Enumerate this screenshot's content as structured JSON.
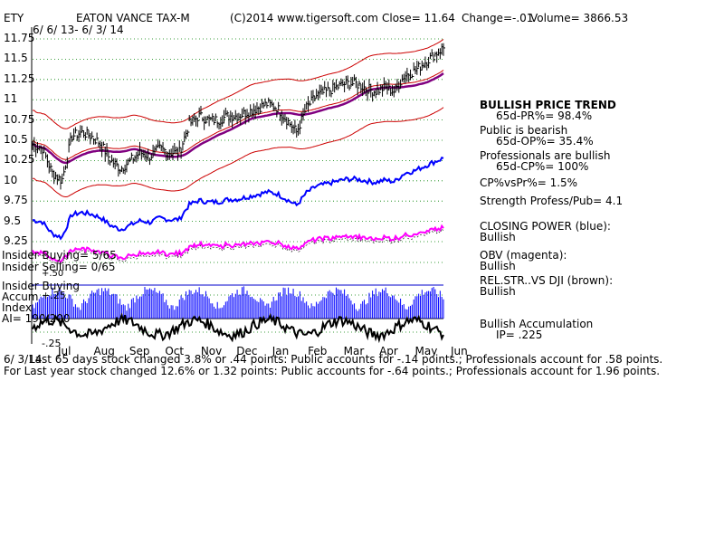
{
  "header": {
    "symbol": "ETY",
    "name": "EATON VANCE TAX-M",
    "copyright": "(C)2014 www.tigersoft.com",
    "close": "Close=  11.64",
    "change": "Change=-.01",
    "volume": "Volume= 3866.53",
    "date_range": "6/ 6/ 13- 6/ 3/ 14"
  },
  "left_labels": {
    "insider_buying": "Insider Buying= 5/65",
    "insider_selling": "Insider Selling= 0/65",
    "plus50": "+.50",
    "insider_buying2": "Insider Buying",
    "accum": "Accum",
    "plus25": "+.25",
    "index": "Index",
    "ai": "AI= 190/200",
    "minus25": "-.25",
    "date_stamp": "6/ 3/14"
  },
  "bottom": {
    "line1": "Last 65 days stock changed  3.8% or  .44 points:  Public accounts for -.14 points.;  Professionals account for  .58 points.",
    "line2": "For Last year stock changed  12.6% or  1.32 points:  Public accounts for -.64 points.;  Professionals account for  1.96 points."
  },
  "sidebar": {
    "trend": "BULLISH PRICE TREND",
    "pr": "65d-PR%= 98.4%",
    "public": "Public is bearish",
    "op": "65d-OP%= 35.4%",
    "prof": "Professionals are bullish",
    "cp": "65d-CP%= 100%",
    "cpvspr": "CP%vsPr%=  1.5%",
    "strength": "Strength Profess/Pub= 4.1",
    "closing_power": "CLOSING POWER (blue):",
    "cp_bullish": "Bullish",
    "obv": "OBV (magenta):",
    "obv_bullish": "Bullish",
    "relstr": "REL.STR..VS DJI (brown):",
    "relstr_bullish": "Bullish",
    "accum_title": "Bullish Accumulation",
    "ip": "IP=  .225"
  },
  "colors": {
    "price_bars": "#000000",
    "bands": "#cc0000",
    "ma": "#800080",
    "closing_power": "#0000ff",
    "obv": "#ff00ff",
    "accum_bars": "#0000ff",
    "relstr": "#000000",
    "insider_line": "#0000cc",
    "grid": "#008000"
  },
  "chart_data": {
    "type": "line",
    "y_ticks": [
      "11.75",
      "11.5",
      "11.25",
      "11",
      "10.75",
      "10.5",
      "10.25",
      "10",
      "9.75",
      "9.5",
      "9.25"
    ],
    "ylim": [
      9.25,
      11.75
    ],
    "x_ticks": [
      "Jul",
      "Aug",
      "Sep",
      "Oct",
      "Nov",
      "Dec",
      "Jan",
      "Feb",
      "Mar",
      "Apr",
      "May",
      "Jun"
    ],
    "series": [
      {
        "values": [
          10.45,
          10.4,
          10.1,
          10.0,
          10.55,
          10.6,
          10.55,
          10.45,
          10.25,
          10.15,
          10.25,
          10.35,
          10.3,
          10.4,
          10.35,
          10.35,
          10.7,
          10.8,
          10.75,
          10.75,
          10.8,
          10.8,
          10.85,
          10.9,
          10.95,
          10.9,
          10.75,
          10.6,
          10.9,
          11.05,
          11.1,
          11.15,
          11.2,
          11.2,
          11.15,
          11.1,
          11.15,
          11.1,
          11.3,
          11.35,
          11.45,
          11.55,
          11.64
        ]
      }
    ]
  }
}
